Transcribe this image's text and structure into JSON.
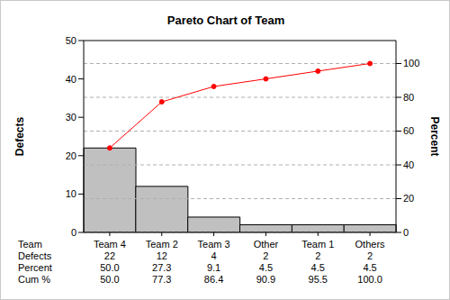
{
  "chart_data": {
    "type": "bar",
    "title": "Pareto Chart of Team",
    "categories": [
      "Team 4",
      "Team 2",
      "Team 3",
      "Other",
      "Team 1",
      "Others"
    ],
    "series": [
      {
        "name": "Defects",
        "type": "bar",
        "color": "#c0c0c0",
        "values": [
          22,
          12,
          4,
          2,
          2,
          2
        ]
      },
      {
        "name": "Cum %",
        "type": "line",
        "axis": "y2",
        "color": "#ff0000",
        "marker": "circle",
        "values": [
          50,
          77.3,
          86.4,
          90.9,
          95.5,
          100
        ],
        "value_labels": [
          "50.0",
          "77.3",
          "86.4",
          "90.9",
          "95.5",
          "100.0"
        ]
      }
    ],
    "y_label": "Defects",
    "y2_label": "Percent",
    "ylim": [
      0,
      50
    ],
    "yticks": [
      0,
      10,
      20,
      30,
      40,
      50
    ],
    "y2lim": [
      0,
      113.6
    ],
    "y2ticks": [
      0,
      20,
      40,
      60,
      80,
      100
    ],
    "grid": true,
    "table": {
      "row_labels": [
        "Team",
        "Defects",
        "Percent",
        "Cum %"
      ],
      "percent": {
        "values": [
          50,
          27.3,
          9.1,
          4.5,
          4.5,
          4.5
        ],
        "value_labels": [
          "50.0",
          "27.3",
          "9.1",
          "4.5",
          "4.5",
          "4.5"
        ]
      }
    }
  }
}
